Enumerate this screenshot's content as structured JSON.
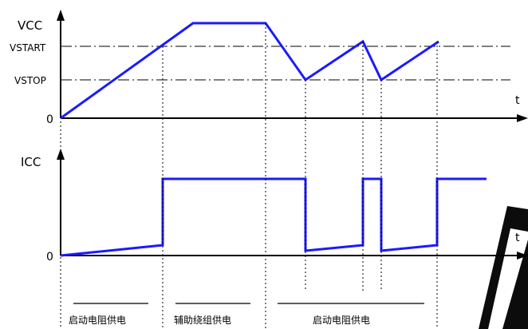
{
  "top_chart": {
    "y_axis_label": "VCC",
    "x_axis_label": "t",
    "origin_label": "0",
    "level_start_label": "VSTART",
    "level_stop_label": "VSTOP"
  },
  "bottom_chart": {
    "y_axis_label": "ICC",
    "x_axis_label": "t",
    "origin_label": "0"
  },
  "phases": [
    {
      "label": "启动电阻供电"
    },
    {
      "label": "辅助绕组供电"
    },
    {
      "label": "启动电阻供电"
    }
  ],
  "colors": {
    "waveform": "#1a1aff",
    "axis": "#000000",
    "watermark": "#000000"
  }
}
